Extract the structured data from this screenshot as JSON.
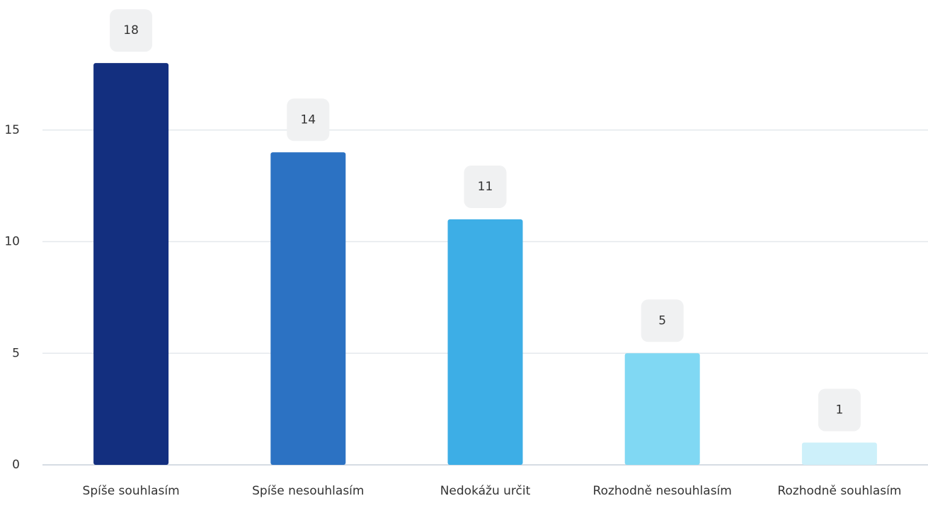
{
  "chart_data": {
    "type": "bar",
    "categories": [
      "Spíše souhlasím",
      "Spíše nesouhlasím",
      "Nedokážu určit",
      "Rozhodně nesouhlasím",
      "Rozhodně souhlasím"
    ],
    "values": [
      18,
      14,
      11,
      5,
      1
    ],
    "colors": [
      "#132f7f",
      "#2c72c3",
      "#3daee6",
      "#80d8f3",
      "#cdf0fa"
    ],
    "ylim": [
      0,
      20
    ],
    "yticks": [
      0,
      5,
      10,
      15
    ],
    "grid": true
  }
}
